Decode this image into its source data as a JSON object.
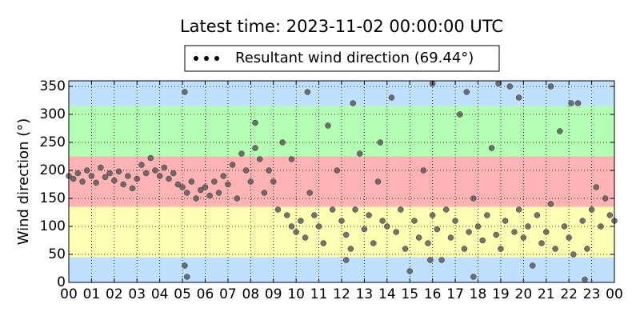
{
  "chart_data": {
    "type": "scatter",
    "title": "Latest time: 2023-11-02 00:00:00 UTC",
    "y_label": "Wind direction (°)",
    "xlim": [
      0,
      24
    ],
    "ylim": [
      0,
      360
    ],
    "xticks": [
      {
        "value": 0,
        "label": "00"
      },
      {
        "value": 1,
        "label": "01"
      },
      {
        "value": 2,
        "label": "02"
      },
      {
        "value": 3,
        "label": "03"
      },
      {
        "value": 4,
        "label": "04"
      },
      {
        "value": 5,
        "label": "05"
      },
      {
        "value": 6,
        "label": "06"
      },
      {
        "value": 7,
        "label": "07"
      },
      {
        "value": 8,
        "label": "08"
      },
      {
        "value": 9,
        "label": "09"
      },
      {
        "value": 10,
        "label": "10"
      },
      {
        "value": 11,
        "label": "11"
      },
      {
        "value": 12,
        "label": "12"
      },
      {
        "value": 13,
        "label": "13"
      },
      {
        "value": 14,
        "label": "14"
      },
      {
        "value": 15,
        "label": "15"
      },
      {
        "value": 16,
        "label": "16"
      },
      {
        "value": 17,
        "label": "17"
      },
      {
        "value": 18,
        "label": "18"
      },
      {
        "value": 19,
        "label": "19"
      },
      {
        "value": 20,
        "label": "20"
      },
      {
        "value": 21,
        "label": "21"
      },
      {
        "value": 22,
        "label": "22"
      },
      {
        "value": 23,
        "label": "23"
      },
      {
        "value": 24,
        "label": "00"
      }
    ],
    "yticks": [
      0,
      50,
      100,
      150,
      200,
      250,
      300,
      350
    ],
    "grid": true,
    "bands": [
      {
        "from": 0,
        "to": 45,
        "color": "#bfe0ff"
      },
      {
        "from": 45,
        "to": 135,
        "color": "#ffffb3"
      },
      {
        "from": 135,
        "to": 225,
        "color": "#ffb3b3"
      },
      {
        "from": 225,
        "to": 315,
        "color": "#b3ffb3"
      },
      {
        "from": 315,
        "to": 360,
        "color": "#bfe0ff"
      }
    ],
    "legend": "upper center",
    "series": [
      {
        "name": "Resultant wind direction (69.44°)",
        "color": "#5a5a5a",
        "x": [
          0.0,
          0.2,
          0.4,
          0.6,
          0.8,
          1.0,
          1.2,
          1.4,
          1.6,
          1.8,
          2.0,
          2.2,
          2.4,
          2.6,
          2.8,
          3.0,
          3.2,
          3.4,
          3.6,
          3.8,
          4.0,
          4.2,
          4.4,
          4.6,
          4.8,
          5.0,
          5.2,
          5.4,
          5.6,
          5.8,
          6.0,
          6.2,
          6.4,
          6.6,
          6.8,
          7.0,
          7.2,
          7.4,
          7.6,
          7.8,
          8.0,
          8.2,
          8.4,
          8.6,
          8.8,
          9.0,
          9.2,
          9.4,
          9.6,
          9.8,
          10.0,
          10.2,
          10.4,
          10.6,
          10.8,
          11.0,
          11.2,
          11.4,
          11.6,
          11.8,
          12.0,
          12.2,
          12.4,
          12.6,
          12.8,
          13.0,
          13.2,
          13.4,
          13.6,
          13.8,
          14.0,
          14.2,
          14.4,
          14.6,
          14.8,
          15.0,
          15.2,
          15.4,
          15.6,
          15.8,
          16.0,
          16.2,
          16.4,
          16.6,
          16.8,
          17.0,
          17.2,
          17.4,
          17.6,
          17.8,
          18.0,
          18.2,
          18.4,
          18.6,
          18.8,
          19.0,
          19.2,
          19.4,
          19.6,
          19.8,
          20.0,
          20.2,
          20.4,
          20.6,
          20.8,
          21.0,
          21.2,
          21.4,
          21.6,
          21.8,
          22.0,
          22.2,
          22.4,
          22.6,
          22.8,
          23.0,
          23.2,
          23.4,
          23.6,
          23.8,
          24.0,
          5.1,
          5.1,
          5.2,
          10.5,
          12.5,
          16.0,
          17.5,
          18.9,
          19.8,
          22.1,
          21.2,
          8.2,
          9.8,
          13.7,
          17.8,
          22.7,
          12.2,
          15.9
        ],
        "values": [
          190,
          185,
          195,
          180,
          200,
          190,
          178,
          205,
          188,
          195,
          182,
          198,
          175,
          190,
          168,
          185,
          210,
          195,
          222,
          200,
          190,
          205,
          185,
          195,
          175,
          170,
          160,
          180,
          150,
          165,
          170,
          155,
          180,
          160,
          190,
          175,
          210,
          150,
          230,
          200,
          180,
          240,
          220,
          160,
          200,
          180,
          130,
          250,
          120,
          100,
          90,
          110,
          80,
          160,
          120,
          100,
          70,
          280,
          130,
          200,
          110,
          85,
          60,
          130,
          230,
          95,
          120,
          70,
          180,
          110,
          100,
          330,
          90,
          130,
          60,
          20,
          110,
          80,
          200,
          70,
          120,
          95,
          40,
          130,
          80,
          110,
          300,
          60,
          90,
          150,
          100,
          75,
          120,
          240,
          85,
          60,
          110,
          350,
          90,
          130,
          80,
          100,
          30,
          120,
          70,
          90,
          140,
          60,
          270,
          100,
          80,
          50,
          320,
          110,
          60,
          130,
          170,
          100,
          150,
          120,
          110,
          340,
          30,
          10,
          340,
          320,
          355,
          340,
          355,
          330,
          320,
          350,
          285,
          220,
          250,
          10,
          5,
          40,
          40
        ]
      }
    ]
  }
}
